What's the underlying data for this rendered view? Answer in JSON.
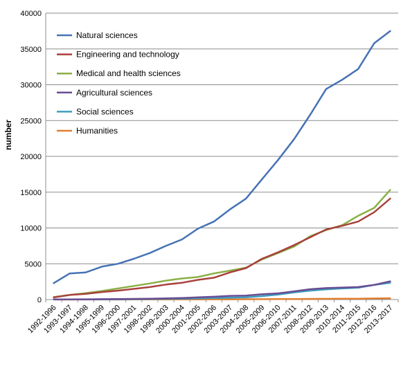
{
  "chart_data": {
    "type": "line",
    "title": "",
    "xlabel": "",
    "ylabel": "number",
    "ylim": [
      0,
      40000
    ],
    "yticks": [
      0,
      5000,
      10000,
      15000,
      20000,
      25000,
      30000,
      35000,
      40000
    ],
    "grid": true,
    "legend": "top-left",
    "categories": [
      "1992-1996",
      "1993-1997",
      "1994-1998",
      "1995-1999",
      "1996-2000",
      "1997-2001",
      "1998-2002",
      "1999-2003",
      "2000-2004",
      "2001-2005",
      "2002-2006",
      "2003-2007",
      "2004-2008",
      "2005-2009",
      "2006-2010",
      "2007-2011",
      "2008-2012",
      "2009-2013",
      "2010-2014",
      "2011-2015",
      "2012-2016",
      "2013-2017"
    ],
    "series": [
      {
        "name": "Natural sciences",
        "color": "#4672B4",
        "values": [
          2300,
          3650,
          3800,
          4600,
          5000,
          5700,
          6500,
          7500,
          8400,
          9900,
          10900,
          12600,
          14100,
          16800,
          19500,
          22400,
          25800,
          29400,
          30700,
          32200,
          35800,
          37500
        ]
      },
      {
        "name": "Engineering and technology",
        "color": "#A8413C",
        "values": [
          300,
          650,
          800,
          1050,
          1250,
          1500,
          1750,
          2100,
          2350,
          2750,
          3050,
          3800,
          4400,
          5700,
          6600,
          7600,
          8700,
          9800,
          10300,
          10900,
          12200,
          14100
        ]
      },
      {
        "name": "Medical and health sciences",
        "color": "#8AAF45",
        "values": [
          350,
          650,
          900,
          1200,
          1550,
          1900,
          2250,
          2650,
          2950,
          3150,
          3650,
          4050,
          4450,
          5600,
          6500,
          7400,
          8850,
          9700,
          10400,
          11700,
          12800,
          15300
        ]
      },
      {
        "name": "Agricultural sciences",
        "color": "#6A4C93",
        "values": [
          20,
          30,
          40,
          60,
          80,
          100,
          130,
          160,
          220,
          320,
          400,
          520,
          560,
          740,
          870,
          1150,
          1450,
          1600,
          1680,
          1750,
          2050,
          2550
        ]
      },
      {
        "name": "Social sciences",
        "color": "#3E9DBC",
        "values": [
          10,
          15,
          20,
          30,
          40,
          60,
          80,
          100,
          130,
          170,
          220,
          260,
          320,
          480,
          700,
          1000,
          1250,
          1430,
          1560,
          1650,
          2050,
          2350
        ]
      },
      {
        "name": "Humanities",
        "color": "#E07E30",
        "values": [
          5,
          5,
          8,
          10,
          12,
          15,
          18,
          22,
          25,
          30,
          35,
          40,
          50,
          60,
          70,
          80,
          100,
          110,
          120,
          130,
          150,
          180
        ]
      }
    ]
  }
}
